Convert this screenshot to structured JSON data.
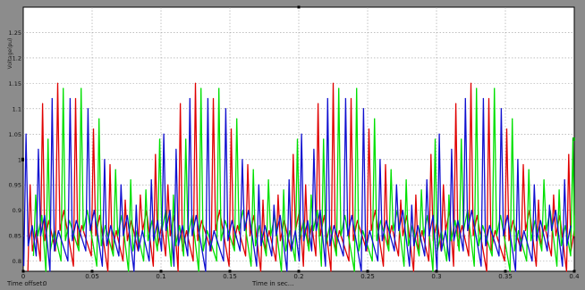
{
  "chart_data": {
    "type": "line",
    "title": "",
    "xlabel": "Time in sec...",
    "ylabel": "Voltage(pu)",
    "xlim": [
      0,
      0.4
    ],
    "ylim": [
      0.78,
      1.3
    ],
    "x_ticks": [
      "0",
      "0.05",
      "0.1",
      "0.15",
      "0.2",
      "0.25",
      "0.3",
      "0.35",
      "0.4"
    ],
    "y_ticks": [
      "0.8",
      "0.85",
      "0.9",
      "0.95",
      "1",
      "1.05",
      "1.1",
      "1.15",
      "1.2",
      "1.25"
    ],
    "grid": true,
    "legend": "none",
    "repeat_period": 0.1,
    "series": [
      {
        "color": "#e00000",
        "peaks": [
          {
            "x": 0.005,
            "y": 0.95
          },
          {
            "x": 0.014,
            "y": 1.11
          },
          {
            "x": 0.025,
            "y": 1.15
          },
          {
            "x": 0.038,
            "y": 1.12
          },
          {
            "x": 0.051,
            "y": 1.06
          },
          {
            "x": 0.063,
            "y": 0.99
          },
          {
            "x": 0.074,
            "y": 0.92
          },
          {
            "x": 0.085,
            "y": 0.93
          },
          {
            "x": 0.096,
            "y": 1.01
          }
        ],
        "trough": 0.78
      },
      {
        "color": "#00e000",
        "peaks": [
          {
            "x": 0.009,
            "y": 0.93
          },
          {
            "x": 0.018,
            "y": 1.04
          },
          {
            "x": 0.029,
            "y": 1.14
          },
          {
            "x": 0.042,
            "y": 1.14
          },
          {
            "x": 0.055,
            "y": 1.08
          },
          {
            "x": 0.067,
            "y": 0.98
          },
          {
            "x": 0.078,
            "y": 0.96
          },
          {
            "x": 0.089,
            "y": 0.94
          },
          {
            "x": 0.099,
            "y": 1.04
          }
        ],
        "trough": 0.78
      },
      {
        "color": "#1010d0",
        "peaks": [
          {
            "x": 0.002,
            "y": 1.05
          },
          {
            "x": 0.011,
            "y": 1.02
          },
          {
            "x": 0.021,
            "y": 1.12
          },
          {
            "x": 0.034,
            "y": 1.12
          },
          {
            "x": 0.047,
            "y": 1.1
          },
          {
            "x": 0.059,
            "y": 1.0
          },
          {
            "x": 0.071,
            "y": 0.95
          },
          {
            "x": 0.082,
            "y": 0.91
          },
          {
            "x": 0.093,
            "y": 0.96
          }
        ],
        "trough": 0.78
      }
    ]
  },
  "footer": {
    "time_offset_label": "Time offset:",
    "time_offset_value": "0",
    "xlabel": "Time in sec..."
  }
}
